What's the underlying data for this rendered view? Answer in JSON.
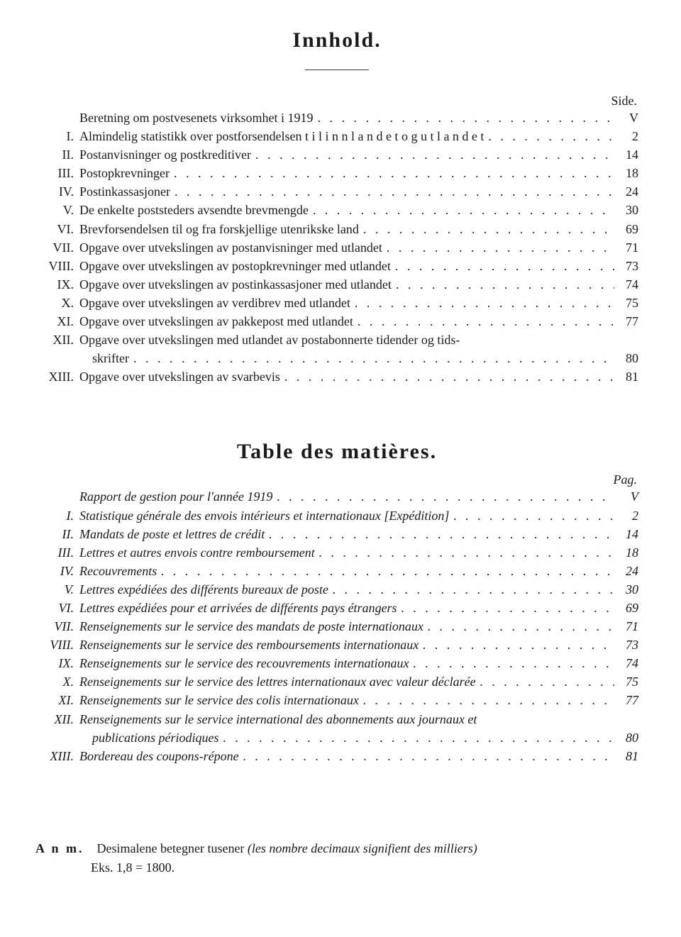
{
  "title1": "Innhold.",
  "pageLabel1": "Side.",
  "toc1": [
    {
      "num": "",
      "text": "Beretning om postvesenets virksomhet i 1919",
      "page": "V",
      "letterspaced": false
    },
    {
      "num": "I.",
      "text": "Almindelig statistikk over postforsendelsen t i l  i n n l a n d e t  o g  u t l a n d e t",
      "page": "2",
      "letterspaced": false
    },
    {
      "num": "II.",
      "text": "Postanvisninger og postkreditiver",
      "page": "14"
    },
    {
      "num": "III.",
      "text": "Postopkrevninger",
      "page": "18"
    },
    {
      "num": "IV.",
      "text": "Postinkassasjoner",
      "page": "24"
    },
    {
      "num": "V.",
      "text": "De enkelte poststeders avsendte brevmengde",
      "page": "30"
    },
    {
      "num": "VI.",
      "text": "Brevforsendelsen til og fra forskjellige utenrikske land",
      "page": "69"
    },
    {
      "num": "VII.",
      "text": "Opgave over utvekslingen av postanvisninger med utlandet",
      "page": "71"
    },
    {
      "num": "VIII.",
      "text": "Opgave over utvekslingen av postopkrevninger med utlandet",
      "page": "73"
    },
    {
      "num": "IX.",
      "text": "Opgave over utvekslingen av postinkassasjoner med utlandet",
      "page": "74"
    },
    {
      "num": "X.",
      "text": "Opgave over utvekslingen av verdibrev med utlandet",
      "page": "75"
    },
    {
      "num": "XI.",
      "text": "Opgave over utvekslingen av pakkepost med utlandet",
      "page": "77"
    },
    {
      "num": "XII.",
      "text": "Opgave over utvekslingen med utlandet av postabonnerte tidender og tids-",
      "page": "",
      "nodots": true
    },
    {
      "num": "",
      "text": "skrifter",
      "page": "80",
      "indent": true
    },
    {
      "num": "XIII.",
      "text": "Opgave over utvekslingen av svarbevis",
      "page": "81"
    }
  ],
  "title2": "Table des matières.",
  "pageLabel2": "Pag.",
  "toc2": [
    {
      "num": "",
      "text": "Rapport de gestion pour l'année 1919",
      "page": "V"
    },
    {
      "num": "I.",
      "text": "Statistique générale des envois intérieurs et internationaux [Expédition]",
      "page": "2"
    },
    {
      "num": "II.",
      "text": "Mandats de poste et lettres de crédit",
      "page": "14"
    },
    {
      "num": "III.",
      "text": "Lettres et autres envois contre remboursement",
      "page": "18"
    },
    {
      "num": "IV.",
      "text": "Recouvrements",
      "page": "24"
    },
    {
      "num": "V.",
      "text": "Lettres expédiées des différents bureaux de poste",
      "page": "30"
    },
    {
      "num": "VI.",
      "text": "Lettres expédiées pour et arrivées de différents pays étrangers",
      "page": "69"
    },
    {
      "num": "VII.",
      "text": "Renseignements sur le service des mandats de poste internationaux",
      "page": "71"
    },
    {
      "num": "VIII.",
      "text": "Renseignements sur le service des remboursements internationaux",
      "page": "73"
    },
    {
      "num": "IX.",
      "text": "Renseignements sur le service des recouvrements internationaux",
      "page": "74"
    },
    {
      "num": "X.",
      "text": "Renseignements sur le service des lettres internationaux avec valeur déclarée",
      "page": "75"
    },
    {
      "num": "XI.",
      "text": "Renseignements sur le service des colis internationaux",
      "page": "77"
    },
    {
      "num": "XII.",
      "text": "Renseignements sur le service international des abonnements aux journaux et",
      "page": "",
      "nodots": true
    },
    {
      "num": "",
      "text": "publications périodiques",
      "page": "80",
      "indent": true
    },
    {
      "num": "XIII.",
      "text": "Bordereau des coupons-répone",
      "page": "81"
    }
  ],
  "note": {
    "lead": "A n m.",
    "body1": "Desimalene betegner tusener ",
    "body1_italic": "(les nombre decimaux signifient des milliers)",
    "body2": "Eks. 1,8 = 1800."
  },
  "dotsFill": ". . . . . . . . . . . . . . . . . . . . . . . . . . . . . . . . . . . . . . . . . . . . . . . . . . . . . . . . . . . . . . . . . . . . . . . . . . . . . . . . . . . . . . . . . . . . . . . . . . . . . . . . . . . . . . . . . . . . . . . . "
}
